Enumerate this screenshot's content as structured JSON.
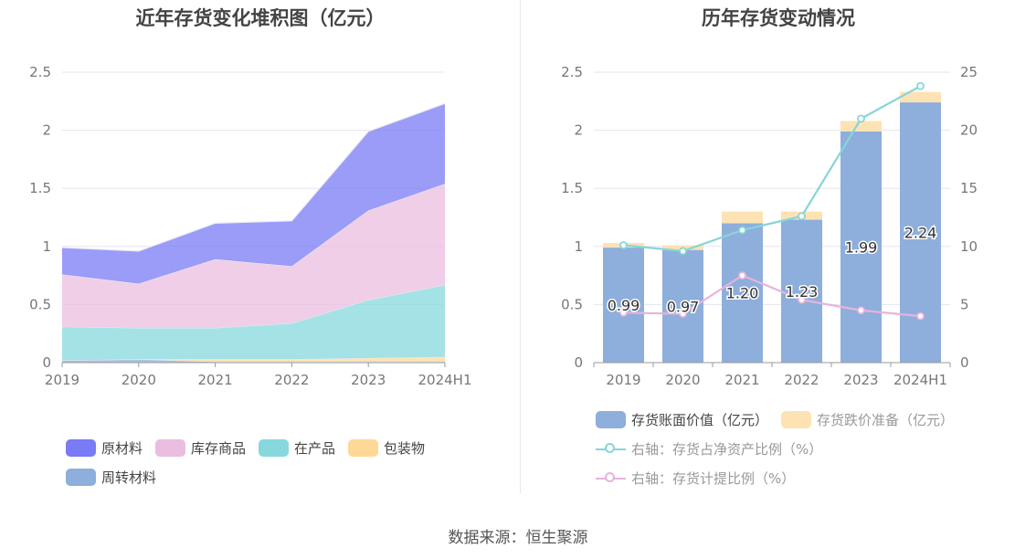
{
  "source_text": "数据来源：恒生聚源",
  "chart_data": [
    {
      "type": "area",
      "title": "近年存货变化堆积图（亿元）",
      "categories": [
        "2019",
        "2020",
        "2021",
        "2022",
        "2023",
        "2024H1"
      ],
      "ylim": [
        0,
        2.5
      ],
      "yticks": [
        "0",
        "0.5",
        "1",
        "1.5",
        "2",
        "2.5"
      ],
      "stacked": true,
      "legend_position": "bottom",
      "series": [
        {
          "name": "周转材料",
          "color": "#8eaedc",
          "values": [
            0.02,
            0.03,
            0.01,
            0.01,
            0.01,
            0.01
          ]
        },
        {
          "name": "包装物",
          "color": "#fdd896",
          "values": [
            0.0,
            0.0,
            0.02,
            0.02,
            0.03,
            0.04
          ]
        },
        {
          "name": "在产品",
          "color": "#87d8dc",
          "values": [
            0.29,
            0.27,
            0.27,
            0.31,
            0.5,
            0.62
          ]
        },
        {
          "name": "库存商品",
          "color": "#ebbde0",
          "values": [
            0.45,
            0.38,
            0.59,
            0.49,
            0.77,
            0.87
          ]
        },
        {
          "name": "原材料",
          "color": "#7a7bf6",
          "values": [
            0.23,
            0.28,
            0.31,
            0.39,
            0.68,
            0.69
          ]
        }
      ],
      "legend_order": [
        "原材料",
        "库存商品",
        "在产品",
        "包装物",
        "周转材料"
      ]
    },
    {
      "type": "bar",
      "title": "历年存货变动情况",
      "categories": [
        "2019",
        "2020",
        "2021",
        "2022",
        "2023",
        "2024H1"
      ],
      "ylim": [
        0,
        2.5
      ],
      "yticks": [
        "0",
        "0.5",
        "1",
        "1.5",
        "2",
        "2.5"
      ],
      "y2lim": [
        0,
        25
      ],
      "y2ticks": [
        "0",
        "5",
        "10",
        "15",
        "20",
        "25"
      ],
      "legend_position": "bottom",
      "series": [
        {
          "name": "存货账面价值（亿元）",
          "type": "bar",
          "stack": "a",
          "color": "#8eaedc",
          "values": [
            0.99,
            0.97,
            1.2,
            1.23,
            1.99,
            2.24
          ],
          "labels": [
            "0.99",
            "0.97",
            "1.20",
            "1.23",
            "1.99",
            "2.24"
          ]
        },
        {
          "name": "存货跌价准备（亿元）",
          "type": "bar",
          "stack": "a",
          "color": "#fde3b3",
          "values": [
            0.04,
            0.04,
            0.1,
            0.07,
            0.09,
            0.09
          ]
        },
        {
          "name": "右轴：存货占净资产比例（%）",
          "type": "line",
          "axis": "right",
          "color": "#87d5d9",
          "values": [
            10.1,
            9.6,
            11.4,
            12.6,
            21.0,
            23.8
          ]
        },
        {
          "name": "右轴：存货计提比例（%）",
          "type": "line",
          "axis": "right",
          "color": "#e7b4dc",
          "values": [
            4.3,
            4.2,
            7.5,
            5.4,
            4.5,
            4.0
          ]
        }
      ]
    }
  ]
}
